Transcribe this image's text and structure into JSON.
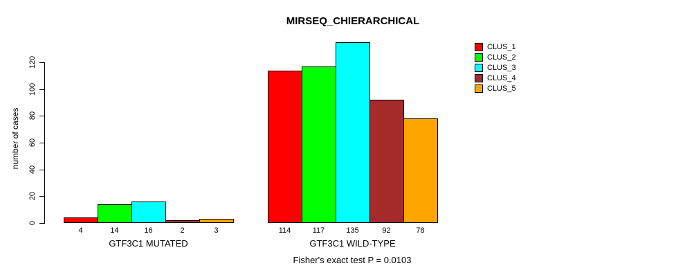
{
  "title": "MIRSEQ_CHIERARCHICAL",
  "footer": "Fisher's exact test P = 0.0103",
  "chart_data": {
    "type": "bar",
    "title": "MIRSEQ_CHIERARCHICAL",
    "xlabel": "",
    "ylabel": "number of cases",
    "ylim": [
      0,
      135
    ],
    "yticks": [
      0,
      20,
      40,
      60,
      80,
      100,
      120
    ],
    "grid": false,
    "legend_position": "right",
    "annotation": "Fisher's exact test P = 0.0103",
    "categories": [
      "GTF3C1 MUTATED",
      "GTF3C1 WILD-TYPE"
    ],
    "series": [
      {
        "name": "CLUS_1",
        "color": "#ff0000",
        "values": [
          4,
          114
        ]
      },
      {
        "name": "CLUS_2",
        "color": "#00ff00",
        "values": [
          14,
          117
        ]
      },
      {
        "name": "CLUS_3",
        "color": "#00ffff",
        "values": [
          16,
          135
        ]
      },
      {
        "name": "CLUS_4",
        "color": "#a52a2a",
        "values": [
          2,
          92
        ]
      },
      {
        "name": "CLUS_5",
        "color": "#ffa500",
        "values": [
          3,
          78
        ]
      }
    ],
    "bar_value_labels": {
      "GTF3C1 MUTATED": [
        4,
        14,
        16,
        2,
        3
      ],
      "GTF3C1 WILD-TYPE": [
        114,
        117,
        135,
        92,
        78
      ]
    }
  }
}
